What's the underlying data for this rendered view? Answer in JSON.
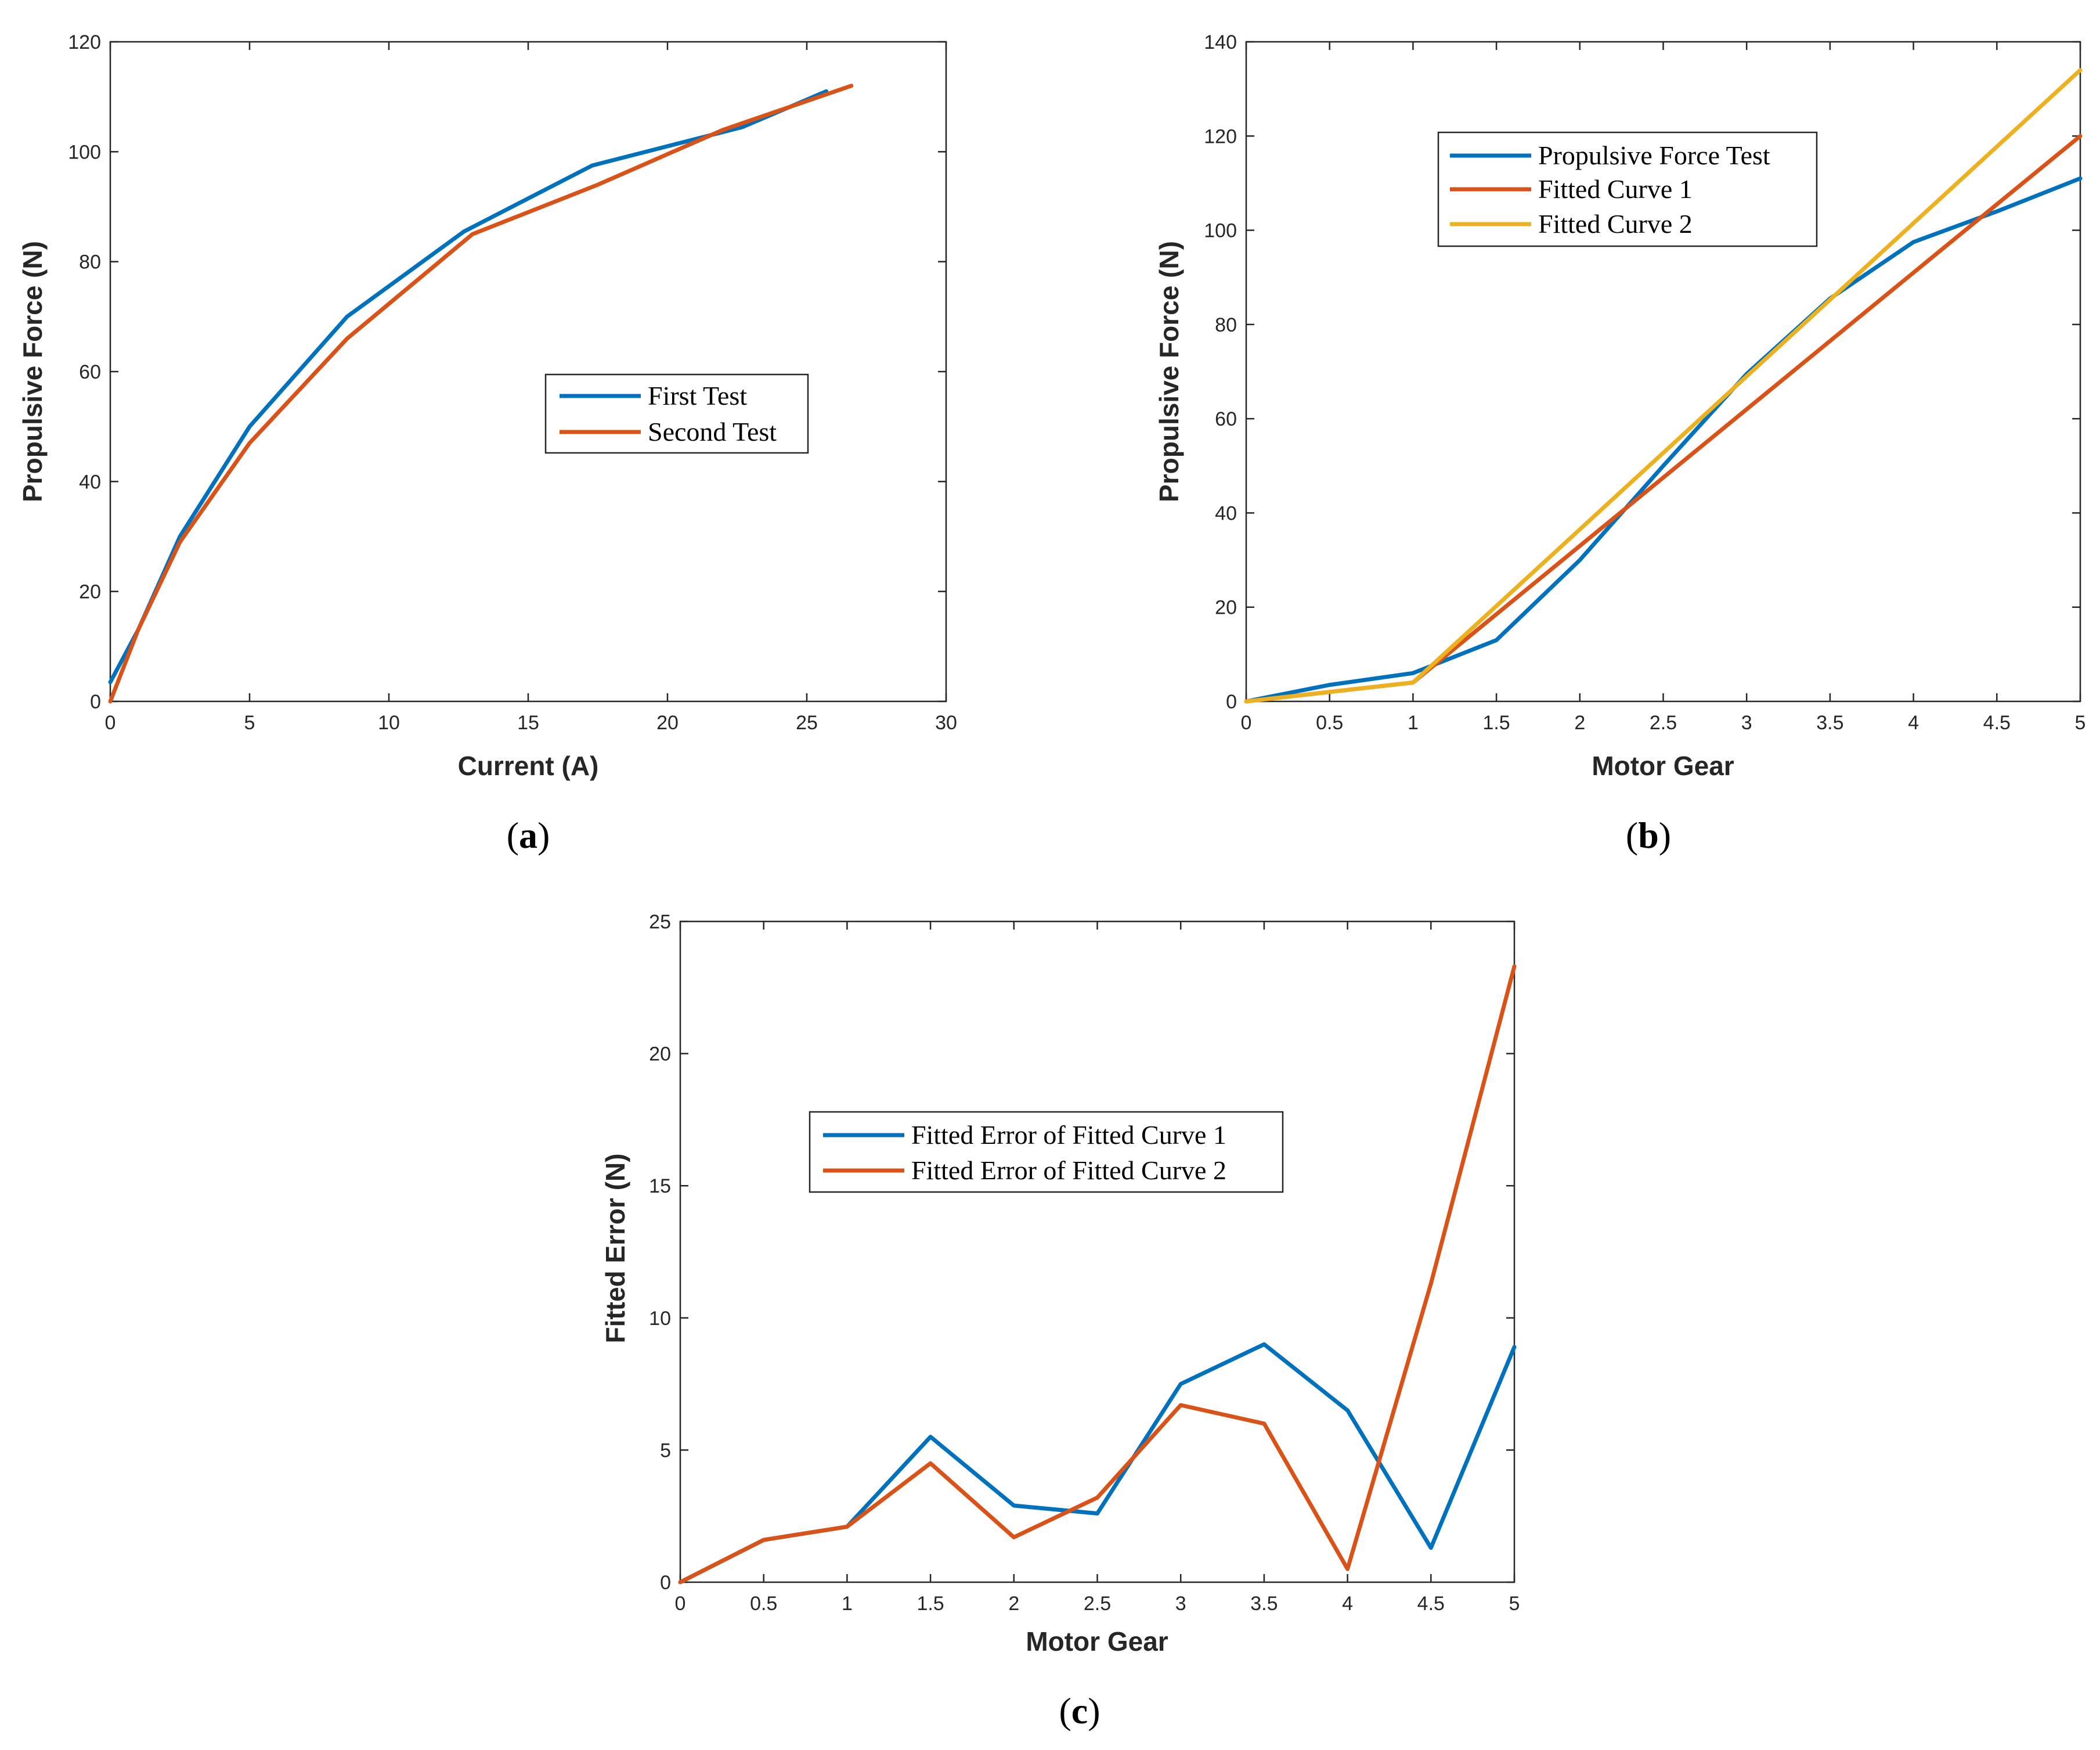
{
  "chart_data": [
    {
      "type": "line",
      "caption": "a",
      "xlabel": "Current (A)",
      "ylabel": "Propulsive Force (N)",
      "xlim": [
        0,
        30
      ],
      "ylim": [
        0,
        120
      ],
      "xticks": [
        0,
        5,
        10,
        15,
        20,
        25,
        30
      ],
      "yticks": [
        0,
        20,
        40,
        60,
        80,
        100,
        120
      ],
      "legend_position": "center-right",
      "series": [
        {
          "name": "First Test",
          "color": "#0072BD",
          "x": [
            0,
            1,
            2.5,
            5,
            8.5,
            12.7,
            17.3,
            22.7,
            25.7
          ],
          "y": [
            3.5,
            13,
            30,
            50,
            70,
            85.5,
            97.5,
            104.5,
            111
          ]
        },
        {
          "name": "Second Test",
          "color": "#D95319",
          "x": [
            0,
            1,
            2.5,
            5,
            8.5,
            13,
            17.5,
            22,
            26.6
          ],
          "y": [
            0,
            13,
            29,
            47,
            66,
            85,
            94,
            104,
            112
          ]
        }
      ]
    },
    {
      "type": "line",
      "caption": "b",
      "xlabel": "Motor Gear",
      "ylabel": "Propulsive Force (N)",
      "xlim": [
        0,
        5
      ],
      "ylim": [
        0,
        140
      ],
      "xticks": [
        0,
        0.5,
        1,
        1.5,
        2,
        2.5,
        3,
        3.5,
        4,
        4.5,
        5
      ],
      "yticks": [
        0,
        20,
        40,
        60,
        80,
        100,
        120,
        140
      ],
      "legend_position": "top-center",
      "series": [
        {
          "name": "Propulsive Force Test",
          "color": "#0072BD",
          "x": [
            0,
            0.5,
            1,
            1.5,
            2,
            2.5,
            3,
            3.5,
            4,
            4.5,
            5
          ],
          "y": [
            0,
            3.5,
            6,
            13,
            30,
            50,
            69.5,
            85.5,
            97.5,
            104,
            111
          ]
        },
        {
          "name": "Fitted Curve 1",
          "color": "#D95319",
          "x": [
            0,
            1,
            5
          ],
          "y": [
            0,
            4,
            120
          ]
        },
        {
          "name": "Fitted Curve 2",
          "color": "#EDB120",
          "x": [
            0,
            1,
            5
          ],
          "y": [
            0,
            4,
            134
          ]
        }
      ]
    },
    {
      "type": "line",
      "caption": "c",
      "xlabel": "Motor Gear",
      "ylabel": "Fitted Error (N)",
      "xlim": [
        0,
        5
      ],
      "ylim": [
        0,
        25
      ],
      "xticks": [
        0,
        0.5,
        1,
        1.5,
        2,
        2.5,
        3,
        3.5,
        4,
        4.5,
        5
      ],
      "yticks": [
        0,
        5,
        10,
        15,
        20,
        25
      ],
      "legend_position": "center-left",
      "series": [
        {
          "name": "Fitted Error of Fitted Curve 1",
          "color": "#0072BD",
          "x": [
            0,
            0.5,
            1,
            1.5,
            2,
            2.5,
            3,
            3.5,
            4,
            4.5,
            5
          ],
          "y": [
            0,
            1.6,
            2.1,
            5.5,
            2.9,
            2.6,
            7.5,
            9,
            6.5,
            1.3,
            8.9
          ]
        },
        {
          "name": "Fitted Error of Fitted Curve 2",
          "color": "#D95319",
          "x": [
            0,
            0.5,
            1,
            1.5,
            2,
            2.5,
            3,
            3.5,
            4,
            4.5,
            5
          ],
          "y": [
            0,
            1.6,
            2.1,
            4.5,
            1.7,
            3.2,
            6.7,
            6,
            0.5,
            11.3,
            23.3
          ]
        }
      ]
    }
  ]
}
